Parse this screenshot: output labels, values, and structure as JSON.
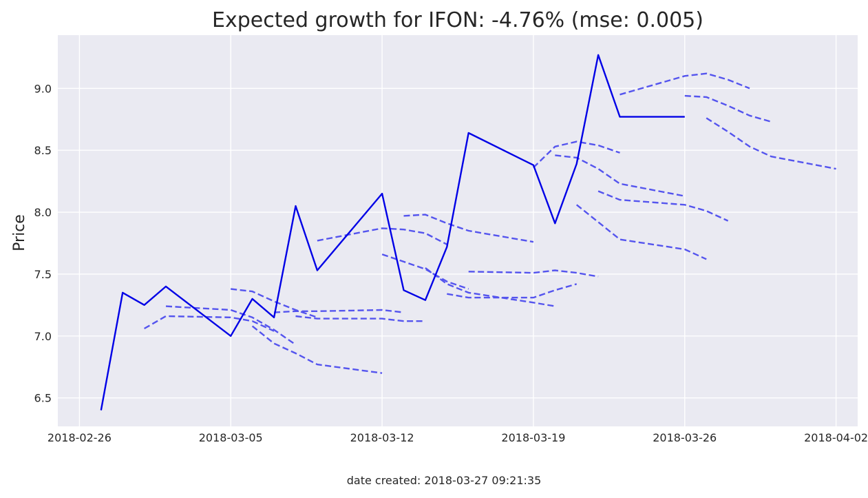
{
  "chart_data": {
    "type": "line",
    "title": "Expected growth for IFON: -4.76% (mse: 0.005)",
    "xlabel": "",
    "ylabel": "Price",
    "footer": "date created: 2018-03-27 09:21:35",
    "xlim": [
      "2018-02-25",
      "2018-04-03"
    ],
    "ylim": [
      6.27,
      9.43
    ],
    "xticks": [
      "2018-02-26",
      "2018-03-05",
      "2018-03-12",
      "2018-03-19",
      "2018-03-26",
      "2018-04-02"
    ],
    "yticks": [
      "6.5",
      "7.0",
      "7.5",
      "8.0",
      "8.5",
      "9.0"
    ],
    "grid": true,
    "background": "#eaeaf2",
    "series": [
      {
        "style": "solid",
        "color": "#0000e6",
        "points": [
          [
            "2018-02-27",
            6.4
          ],
          [
            "2018-02-28",
            7.35
          ],
          [
            "2018-03-01",
            7.25
          ],
          [
            "2018-03-02",
            7.4
          ],
          [
            "2018-03-05",
            7.0
          ],
          [
            "2018-03-06",
            7.3
          ],
          [
            "2018-03-07",
            7.15
          ],
          [
            "2018-03-08",
            8.05
          ],
          [
            "2018-03-09",
            7.53
          ],
          [
            "2018-03-12",
            8.15
          ],
          [
            "2018-03-13",
            7.37
          ],
          [
            "2018-03-14",
            7.29
          ],
          [
            "2018-03-15",
            7.72
          ],
          [
            "2018-03-16",
            8.64
          ],
          [
            "2018-03-19",
            8.38
          ],
          [
            "2018-03-20",
            7.91
          ],
          [
            "2018-03-21",
            8.39
          ],
          [
            "2018-03-22",
            9.27
          ],
          [
            "2018-03-23",
            8.77
          ],
          [
            "2018-03-26",
            8.77
          ]
        ]
      },
      {
        "style": "dashed",
        "color": "#5454ee",
        "points": [
          [
            "2018-03-01",
            7.06
          ],
          [
            "2018-03-02",
            7.16
          ],
          [
            "2018-03-05",
            7.15
          ],
          [
            "2018-03-06",
            7.12
          ],
          [
            "2018-03-07",
            7.04
          ]
        ]
      },
      {
        "style": "dashed",
        "color": "#5454ee",
        "points": [
          [
            "2018-03-02",
            7.24
          ],
          [
            "2018-03-05",
            7.21
          ],
          [
            "2018-03-06",
            7.15
          ],
          [
            "2018-03-07",
            7.05
          ],
          [
            "2018-03-08",
            6.93
          ]
        ]
      },
      {
        "style": "dashed",
        "color": "#5454ee",
        "points": [
          [
            "2018-03-05",
            7.38
          ],
          [
            "2018-03-06",
            7.36
          ],
          [
            "2018-03-07",
            7.28
          ],
          [
            "2018-03-08",
            7.21
          ],
          [
            "2018-03-09",
            7.15
          ]
        ]
      },
      {
        "style": "dashed",
        "color": "#5454ee",
        "points": [
          [
            "2018-03-06",
            7.08
          ],
          [
            "2018-03-07",
            6.94
          ],
          [
            "2018-03-08",
            6.86
          ],
          [
            "2018-03-09",
            6.77
          ],
          [
            "2018-03-12",
            6.7
          ]
        ]
      },
      {
        "style": "dashed",
        "color": "#5454ee",
        "points": [
          [
            "2018-03-07",
            7.19
          ],
          [
            "2018-03-08",
            7.2
          ],
          [
            "2018-03-09",
            7.2
          ],
          [
            "2018-03-12",
            7.21
          ],
          [
            "2018-03-13",
            7.19
          ]
        ]
      },
      {
        "style": "dashed",
        "color": "#5454ee",
        "points": [
          [
            "2018-03-08",
            7.16
          ],
          [
            "2018-03-09",
            7.14
          ],
          [
            "2018-03-12",
            7.14
          ],
          [
            "2018-03-13",
            7.12
          ],
          [
            "2018-03-14",
            7.12
          ]
        ]
      },
      {
        "style": "dashed",
        "color": "#5454ee",
        "points": [
          [
            "2018-03-09",
            7.77
          ],
          [
            "2018-03-12",
            7.87
          ],
          [
            "2018-03-13",
            7.86
          ],
          [
            "2018-03-14",
            7.83
          ],
          [
            "2018-03-15",
            7.74
          ]
        ]
      },
      {
        "style": "dashed",
        "color": "#5454ee",
        "points": [
          [
            "2018-03-12",
            7.66
          ],
          [
            "2018-03-13",
            7.6
          ],
          [
            "2018-03-14",
            7.54
          ],
          [
            "2018-03-15",
            7.44
          ],
          [
            "2018-03-16",
            7.38
          ]
        ]
      },
      {
        "style": "dashed",
        "color": "#5454ee",
        "points": [
          [
            "2018-03-13",
            7.97
          ],
          [
            "2018-03-14",
            7.98
          ],
          [
            "2018-03-15",
            7.91
          ],
          [
            "2018-03-16",
            7.85
          ],
          [
            "2018-03-19",
            7.76
          ]
        ]
      },
      {
        "style": "dashed",
        "color": "#5454ee",
        "points": [
          [
            "2018-03-14",
            7.55
          ],
          [
            "2018-03-15",
            7.42
          ],
          [
            "2018-03-16",
            7.35
          ],
          [
            "2018-03-19",
            7.27
          ],
          [
            "2018-03-20",
            7.24
          ]
        ]
      },
      {
        "style": "dashed",
        "color": "#5454ee",
        "points": [
          [
            "2018-03-15",
            7.34
          ],
          [
            "2018-03-16",
            7.31
          ],
          [
            "2018-03-19",
            7.31
          ],
          [
            "2018-03-20",
            7.37
          ],
          [
            "2018-03-21",
            7.42
          ]
        ]
      },
      {
        "style": "dashed",
        "color": "#5454ee",
        "points": [
          [
            "2018-03-16",
            7.52
          ],
          [
            "2018-03-19",
            7.51
          ],
          [
            "2018-03-20",
            7.53
          ],
          [
            "2018-03-21",
            7.51
          ],
          [
            "2018-03-22",
            7.48
          ]
        ]
      },
      {
        "style": "dashed",
        "color": "#5454ee",
        "points": [
          [
            "2018-03-19",
            8.36
          ],
          [
            "2018-03-20",
            8.53
          ],
          [
            "2018-03-21",
            8.57
          ],
          [
            "2018-03-22",
            8.54
          ],
          [
            "2018-03-23",
            8.48
          ]
        ]
      },
      {
        "style": "dashed",
        "color": "#5454ee",
        "points": [
          [
            "2018-03-20",
            8.46
          ],
          [
            "2018-03-21",
            8.44
          ],
          [
            "2018-03-22",
            8.35
          ],
          [
            "2018-03-23",
            8.23
          ],
          [
            "2018-03-26",
            8.13
          ]
        ]
      },
      {
        "style": "dashed",
        "color": "#5454ee",
        "points": [
          [
            "2018-03-21",
            8.06
          ],
          [
            "2018-03-22",
            7.92
          ],
          [
            "2018-03-23",
            7.78
          ],
          [
            "2018-03-26",
            7.7
          ],
          [
            "2018-03-27",
            7.62
          ]
        ]
      },
      {
        "style": "dashed",
        "color": "#5454ee",
        "points": [
          [
            "2018-03-22",
            8.17
          ],
          [
            "2018-03-23",
            8.1
          ],
          [
            "2018-03-26",
            8.06
          ],
          [
            "2018-03-27",
            8.01
          ],
          [
            "2018-03-28",
            7.93
          ]
        ]
      },
      {
        "style": "dashed",
        "color": "#5454ee",
        "points": [
          [
            "2018-03-23",
            8.95
          ],
          [
            "2018-03-26",
            9.1
          ],
          [
            "2018-03-27",
            9.12
          ],
          [
            "2018-03-28",
            9.07
          ],
          [
            "2018-03-29",
            9.0
          ]
        ]
      },
      {
        "style": "dashed",
        "color": "#5454ee",
        "points": [
          [
            "2018-03-26",
            8.94
          ],
          [
            "2018-03-27",
            8.93
          ],
          [
            "2018-03-28",
            8.86
          ],
          [
            "2018-03-29",
            8.78
          ],
          [
            "2018-03-30",
            8.73
          ]
        ]
      },
      {
        "style": "dashed",
        "color": "#5454ee",
        "points": [
          [
            "2018-03-27",
            8.76
          ],
          [
            "2018-03-28",
            8.65
          ],
          [
            "2018-03-29",
            8.53
          ],
          [
            "2018-03-30",
            8.45
          ],
          [
            "2018-04-02",
            8.35
          ]
        ]
      }
    ]
  }
}
